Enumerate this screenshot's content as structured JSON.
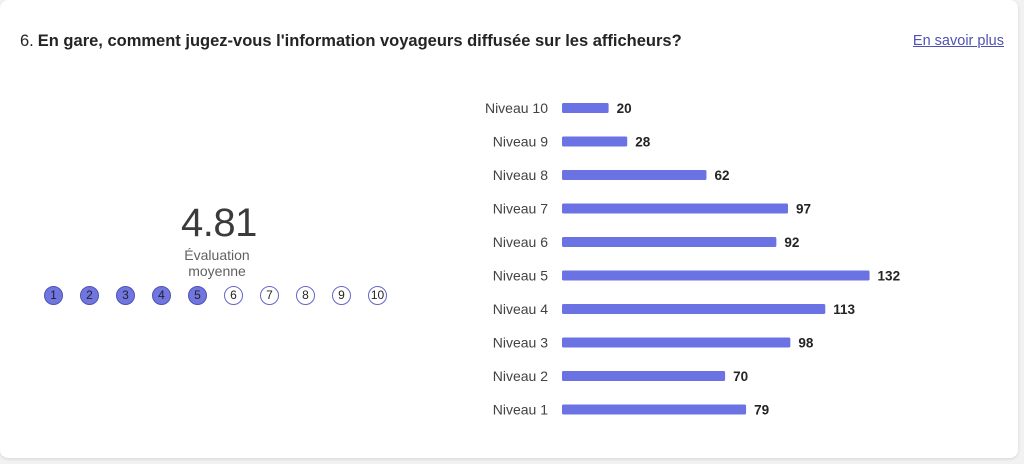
{
  "question": {
    "number": "6.",
    "text": "En gare, comment jugez-vous l'information voyageurs diffusée sur les afficheurs?"
  },
  "learn_more": "En savoir plus",
  "average": {
    "value": "4.81",
    "label": "Évaluation moyenne"
  },
  "rating_scale": {
    "points": [
      "1",
      "2",
      "3",
      "4",
      "5",
      "6",
      "7",
      "8",
      "9",
      "10"
    ],
    "filled_count": 5
  },
  "colors": {
    "accent": "#6b72e3",
    "link": "#4f52b2"
  },
  "chart_data": {
    "type": "bar",
    "orientation": "horizontal",
    "title": "",
    "xlabel": "",
    "ylabel": "",
    "categories": [
      "Niveau 10",
      "Niveau 9",
      "Niveau 8",
      "Niveau 7",
      "Niveau 6",
      "Niveau 5",
      "Niveau 4",
      "Niveau 3",
      "Niveau 2",
      "Niveau 1"
    ],
    "values": [
      20,
      28,
      62,
      97,
      92,
      132,
      113,
      98,
      70,
      79
    ],
    "data_labels": true,
    "grid": false
  }
}
